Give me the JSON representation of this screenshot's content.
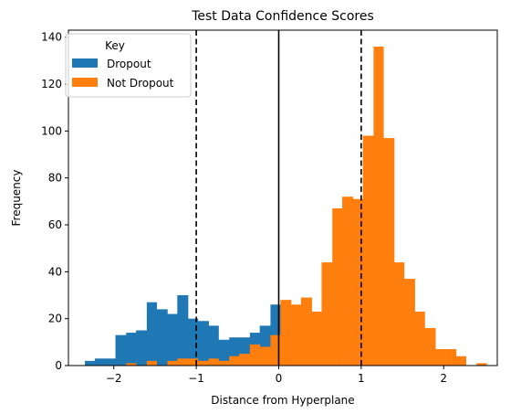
{
  "chart_data": {
    "type": "bar",
    "title": "Test Data Confidence Scores",
    "xlabel": "Distance from Hyperplane",
    "ylabel": "Frequency",
    "xlim": [
      -2.55,
      2.65
    ],
    "ylim": [
      0,
      143
    ],
    "xticks": [
      -2,
      -1,
      0,
      1,
      2
    ],
    "xtick_labels": [
      "−2",
      "−1",
      "0",
      "1",
      "2"
    ],
    "yticks": [
      0,
      20,
      40,
      60,
      80,
      100,
      120,
      140
    ],
    "ytick_labels": [
      "0",
      "20",
      "40",
      "60",
      "80",
      "100",
      "120",
      "140"
    ],
    "grid": false,
    "legend": {
      "title": "Key",
      "placement": "top-left"
    },
    "series": [
      {
        "name": "Dropout",
        "color": "#1f77b4",
        "bins": [
          [
            -2.35,
            -2.23,
            2
          ],
          [
            -2.23,
            -2.1,
            3
          ],
          [
            -2.1,
            -1.98,
            3
          ],
          [
            -1.98,
            -1.85,
            13
          ],
          [
            -1.85,
            -1.73,
            14
          ],
          [
            -1.73,
            -1.6,
            15
          ],
          [
            -1.6,
            -1.48,
            27
          ],
          [
            -1.48,
            -1.35,
            24
          ],
          [
            -1.35,
            -1.23,
            22
          ],
          [
            -1.23,
            -1.1,
            30
          ],
          [
            -1.1,
            -0.98,
            20
          ],
          [
            -0.98,
            -0.85,
            19
          ],
          [
            -0.85,
            -0.73,
            17
          ],
          [
            -0.73,
            -0.6,
            11
          ],
          [
            -0.6,
            -0.48,
            12
          ],
          [
            -0.48,
            -0.35,
            12
          ],
          [
            -0.35,
            -0.23,
            14
          ],
          [
            -0.23,
            -0.1,
            17
          ],
          [
            -0.1,
            0.02,
            26
          ],
          [
            0.02,
            0.15,
            12
          ]
        ]
      },
      {
        "name": "Not Dropout",
        "color": "#ff7f0e",
        "bins": [
          [
            -1.85,
            -1.73,
            1
          ],
          [
            -1.6,
            -1.48,
            2
          ],
          [
            -1.35,
            -1.23,
            2
          ],
          [
            -1.23,
            -1.1,
            3
          ],
          [
            -1.1,
            -0.98,
            3
          ],
          [
            -0.98,
            -0.85,
            2
          ],
          [
            -0.85,
            -0.73,
            3
          ],
          [
            -0.73,
            -0.6,
            2
          ],
          [
            -0.6,
            -0.48,
            4
          ],
          [
            -0.48,
            -0.35,
            5
          ],
          [
            -0.35,
            -0.23,
            9
          ],
          [
            -0.23,
            -0.1,
            8
          ],
          [
            -0.1,
            0.02,
            13
          ],
          [
            0.02,
            0.15,
            28
          ],
          [
            0.15,
            0.27,
            26
          ],
          [
            0.27,
            0.4,
            29
          ],
          [
            0.4,
            0.52,
            23
          ],
          [
            0.52,
            0.65,
            44
          ],
          [
            0.65,
            0.77,
            67
          ],
          [
            0.77,
            0.9,
            72
          ],
          [
            0.9,
            1.02,
            71
          ],
          [
            1.02,
            1.15,
            98
          ],
          [
            1.15,
            1.27,
            136
          ],
          [
            1.27,
            1.4,
            97
          ],
          [
            1.4,
            1.52,
            44
          ],
          [
            1.52,
            1.65,
            37
          ],
          [
            1.65,
            1.77,
            23
          ],
          [
            1.77,
            1.9,
            16
          ],
          [
            1.9,
            2.02,
            7
          ],
          [
            2.02,
            2.15,
            7
          ],
          [
            2.15,
            2.27,
            4
          ],
          [
            2.4,
            2.52,
            1
          ]
        ]
      }
    ],
    "vlines": [
      {
        "x": -1,
        "style": "dashed",
        "color": "#000000"
      },
      {
        "x": 0,
        "style": "solid",
        "color": "#000000"
      },
      {
        "x": 1,
        "style": "dashed",
        "color": "#000000"
      }
    ]
  }
}
